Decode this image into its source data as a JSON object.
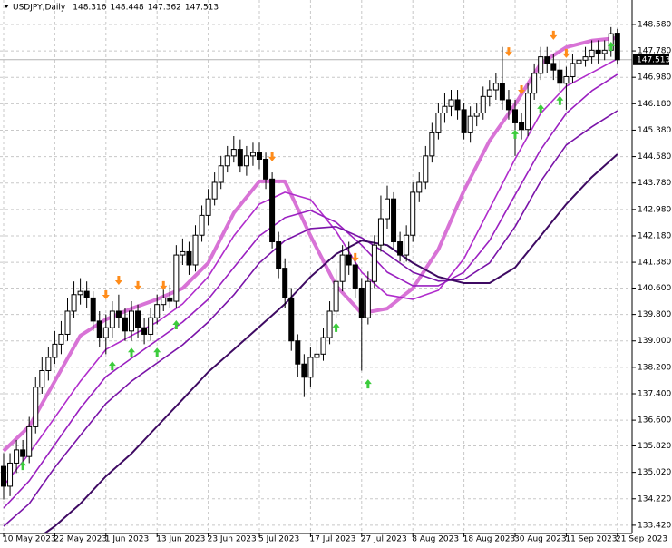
{
  "chart_data": {
    "type": "candlestick",
    "title": "USDJPY,Daily",
    "categories": [
      "10 May 2023",
      null,
      null,
      null,
      null,
      null,
      null,
      null,
      "22 May 2023",
      null,
      null,
      null,
      null,
      null,
      null,
      null,
      "1 Jun 2023",
      null,
      null,
      null,
      null,
      null,
      null,
      null,
      "13 Jun 2023",
      null,
      null,
      null,
      null,
      null,
      null,
      null,
      "23 Jun 2023",
      null,
      null,
      null,
      null,
      null,
      null,
      null,
      "5 Jul 2023",
      null,
      null,
      null,
      null,
      null,
      null,
      null,
      "17 Jul 2023",
      null,
      null,
      null,
      null,
      null,
      null,
      null,
      "27 Jul 2023",
      null,
      null,
      null,
      null,
      null,
      null,
      null,
      "8 Aug 2023",
      null,
      null,
      null,
      null,
      null,
      null,
      null,
      "18 Aug 2023",
      null,
      null,
      null,
      null,
      null,
      null,
      null,
      "30 Aug 2023",
      null,
      null,
      null,
      null,
      null,
      null,
      null,
      "11 Sep 2023",
      null,
      null,
      null,
      null,
      null,
      null,
      null,
      "21 Sep 2023"
    ],
    "open": [
      135.2,
      134.6,
      135.3,
      135.7,
      135.5,
      136.4,
      137.6,
      138.1,
      138.5,
      138.9,
      139.2,
      139.9,
      140.4,
      140.5,
      140.3,
      139.6,
      139.1,
      139.4,
      139.9,
      139.7,
      139.3,
      139.9,
      139.4,
      139.2,
      139.7,
      140.1,
      140.3,
      140.2,
      141.6,
      141.7,
      141.3,
      142.2,
      142.8,
      143.3,
      143.8,
      144.3,
      144.6,
      144.8,
      144.3,
      144.6,
      144.7,
      144.5,
      143.9,
      142.0,
      141.2,
      140.3,
      139.0,
      138.3,
      137.9,
      138.5,
      138.6,
      139.1,
      139.9,
      140.8,
      141.6,
      141.3,
      140.6,
      139.7,
      140.8,
      141.9,
      142.7,
      143.3,
      142.0,
      141.6,
      142.2,
      143.5,
      143.8,
      144.6,
      145.3,
      145.9,
      146.1,
      146.3,
      146.0,
      145.3,
      145.8,
      145.9,
      146.4,
      146.6,
      146.8,
      146.3,
      146.0,
      145.6,
      145.4,
      146.5,
      147.1,
      147.6,
      147.4,
      147.2,
      146.8,
      147.0,
      147.4,
      147.5,
      147.6,
      147.8,
      147.7,
      147.8,
      148.316
    ],
    "high": [
      135.6,
      135.6,
      136.0,
      136.0,
      136.7,
      137.9,
      138.5,
      138.8,
      139.3,
      139.6,
      140.3,
      140.8,
      140.9,
      140.8,
      140.5,
      139.9,
      139.8,
      140.2,
      140.4,
      140.0,
      140.2,
      140.1,
      139.7,
      140.0,
      140.4,
      140.6,
      140.7,
      141.9,
      142.1,
      142.0,
      142.5,
      143.1,
      143.6,
      144.1,
      144.6,
      144.9,
      145.2,
      145.1,
      144.9,
      145.0,
      145.0,
      144.7,
      144.1,
      142.3,
      141.5,
      140.6,
      139.2,
      138.6,
      138.8,
      139.0,
      139.4,
      140.2,
      141.2,
      141.9,
      142.0,
      141.6,
      140.9,
      141.1,
      142.2,
      143.4,
      143.7,
      143.5,
      142.3,
      142.5,
      143.8,
      144.1,
      144.9,
      145.6,
      146.2,
      146.5,
      146.6,
      146.6,
      146.2,
      146.1,
      146.2,
      146.7,
      146.9,
      147.1,
      147.9,
      146.6,
      146.3,
      145.9,
      146.8,
      147.4,
      147.9,
      147.9,
      147.7,
      147.5,
      147.3,
      147.7,
      147.8,
      147.9,
      148.1,
      148.1,
      148.1,
      148.5,
      148.448
    ],
    "low": [
      134.2,
      134.3,
      135.0,
      135.2,
      135.3,
      136.2,
      137.4,
      137.8,
      138.3,
      138.6,
      139.0,
      139.7,
      140.1,
      140.0,
      139.3,
      138.8,
      138.6,
      139.1,
      139.4,
      139.0,
      139.0,
      139.1,
      138.9,
      139.0,
      139.5,
      139.9,
      140.0,
      140.0,
      141.3,
      141.0,
      141.1,
      142.0,
      142.5,
      143.1,
      143.6,
      144.1,
      144.4,
      144.1,
      144.0,
      144.3,
      144.2,
      143.6,
      141.8,
      140.9,
      140.0,
      138.7,
      137.9,
      137.3,
      137.6,
      138.2,
      138.4,
      138.9,
      139.7,
      140.5,
      141.0,
      140.3,
      138.1,
      139.5,
      140.6,
      141.7,
      142.4,
      141.8,
      141.4,
      141.4,
      142.0,
      143.2,
      143.6,
      144.4,
      145.1,
      145.6,
      145.8,
      145.7,
      145.1,
      145.0,
      145.5,
      145.7,
      146.1,
      146.3,
      146.0,
      145.7,
      144.6,
      145.1,
      145.2,
      146.3,
      146.9,
      147.1,
      146.9,
      146.5,
      146.0,
      146.8,
      147.1,
      147.3,
      147.4,
      147.4,
      147.5,
      147.6,
      147.362
    ],
    "close": [
      134.6,
      135.3,
      135.7,
      135.5,
      136.4,
      137.6,
      138.1,
      138.5,
      138.9,
      139.2,
      139.9,
      140.4,
      140.5,
      140.3,
      139.6,
      139.1,
      139.4,
      139.9,
      139.7,
      139.3,
      139.9,
      139.4,
      139.2,
      139.7,
      140.1,
      140.3,
      140.2,
      141.6,
      141.7,
      141.3,
      142.2,
      142.8,
      143.3,
      143.8,
      144.3,
      144.6,
      144.8,
      144.3,
      144.6,
      144.7,
      144.5,
      143.9,
      142.0,
      141.2,
      140.3,
      139.0,
      138.3,
      137.9,
      138.5,
      138.6,
      139.1,
      139.9,
      140.8,
      141.6,
      141.3,
      140.6,
      139.7,
      140.8,
      141.9,
      142.7,
      143.3,
      142.0,
      141.6,
      142.2,
      143.5,
      143.8,
      144.6,
      145.3,
      145.9,
      146.1,
      146.3,
      146.0,
      145.3,
      145.8,
      145.9,
      146.4,
      146.6,
      146.8,
      146.3,
      146.0,
      145.6,
      145.4,
      146.5,
      147.1,
      147.6,
      147.4,
      147.2,
      146.8,
      147.0,
      147.4,
      147.5,
      147.6,
      147.8,
      147.7,
      147.8,
      148.3,
      147.513
    ],
    "ylim": [
      133.17,
      149.32
    ],
    "yticks": [
      {
        "value": 148.58,
        "label": "148.580"
      },
      {
        "value": 147.78,
        "label": "147.780"
      },
      {
        "value": 146.98,
        "label": "146.980"
      },
      {
        "value": 146.18,
        "label": "146.180"
      },
      {
        "value": 145.38,
        "label": "145.380"
      },
      {
        "value": 144.58,
        "label": "144.580"
      },
      {
        "value": 143.78,
        "label": "143.780"
      },
      {
        "value": 142.98,
        "label": "142.980"
      },
      {
        "value": 142.18,
        "label": "142.180"
      },
      {
        "value": 141.38,
        "label": "141.380"
      },
      {
        "value": 140.6,
        "label": "140.600"
      },
      {
        "value": 139.8,
        "label": "139.800"
      },
      {
        "value": 139.0,
        "label": "139.000"
      },
      {
        "value": 138.2,
        "label": "138.200"
      },
      {
        "value": 137.4,
        "label": "137.400"
      },
      {
        "value": 136.6,
        "label": "136.600"
      },
      {
        "value": 135.82,
        "label": "135.820"
      },
      {
        "value": 135.02,
        "label": "135.020"
      },
      {
        "value": 134.22,
        "label": "134.220"
      },
      {
        "value": 133.42,
        "label": "133.420"
      }
    ],
    "grid": true,
    "moving_averages": {
      "x": [
        0,
        4,
        8,
        12,
        16,
        20,
        24,
        28,
        32,
        36,
        40,
        44,
        48,
        52,
        56,
        60,
        64,
        68,
        72,
        76,
        80,
        84,
        88,
        92,
        96
      ],
      "series": [
        {
          "color": "#d873d6",
          "width": 4,
          "values": [
            135.67,
            136.41,
            137.78,
            139.16,
            139.65,
            139.98,
            140.26,
            140.59,
            141.36,
            142.87,
            143.83,
            143.83,
            142.18,
            140.67,
            139.84,
            139.98,
            140.59,
            141.77,
            143.55,
            145.06,
            146.16,
            147.4,
            147.89,
            148.09,
            148.17
          ]
        },
        {
          "color": "#b02ccc",
          "width": 1.6,
          "values": [
            134.62,
            135.59,
            136.68,
            137.78,
            138.74,
            139.16,
            139.57,
            140.12,
            140.94,
            142.18,
            143.14,
            143.5,
            143.28,
            142.32,
            141.08,
            140.39,
            140.26,
            140.53,
            141.49,
            143.0,
            144.51,
            145.89,
            146.71,
            147.12,
            147.54
          ]
        },
        {
          "color": "#9a20c0",
          "width": 1.6,
          "values": [
            133.94,
            134.76,
            135.86,
            136.96,
            137.92,
            138.47,
            139.02,
            139.57,
            140.26,
            141.22,
            142.18,
            142.73,
            142.95,
            142.59,
            141.9,
            141.08,
            140.67,
            140.67,
            141.08,
            142.04,
            143.42,
            144.79,
            145.89,
            146.57,
            147.07
          ]
        },
        {
          "color": "#7a14a8",
          "width": 1.6,
          "values": [
            133.39,
            134.07,
            135.17,
            136.14,
            137.1,
            137.78,
            138.33,
            138.88,
            139.57,
            140.39,
            141.36,
            142.04,
            142.4,
            142.46,
            142.12,
            141.63,
            141.08,
            140.81,
            140.86,
            141.36,
            142.46,
            143.83,
            144.93,
            145.48,
            145.97
          ]
        },
        {
          "color": "#3e0a62",
          "width": 2,
          "values": [
            132.29,
            132.84,
            133.39,
            134.07,
            134.9,
            135.59,
            136.41,
            137.23,
            138.06,
            138.74,
            139.43,
            140.12,
            140.94,
            141.63,
            142.04,
            141.9,
            141.36,
            140.94,
            140.75,
            140.75,
            141.22,
            142.18,
            143.14,
            143.96,
            144.65
          ]
        }
      ]
    },
    "sell_signals": {
      "color": "#ff8c1a",
      "x": [
        16,
        18,
        21,
        25,
        42,
        55,
        79,
        81,
        86,
        88
      ],
      "values": [
        140.31,
        140.75,
        140.59,
        140.59,
        144.49,
        141.44,
        147.67,
        146.52,
        148.17,
        147.62
      ]
    },
    "buy_signals": {
      "color": "#3ccc3c",
      "x": [
        3,
        17,
        20,
        24,
        27,
        52,
        57,
        80,
        84,
        87,
        95
      ],
      "values": [
        135.31,
        138.33,
        138.74,
        138.74,
        139.57,
        139.49,
        137.78,
        145.34,
        146.11,
        146.36,
        148.0
      ]
    }
  }
}
